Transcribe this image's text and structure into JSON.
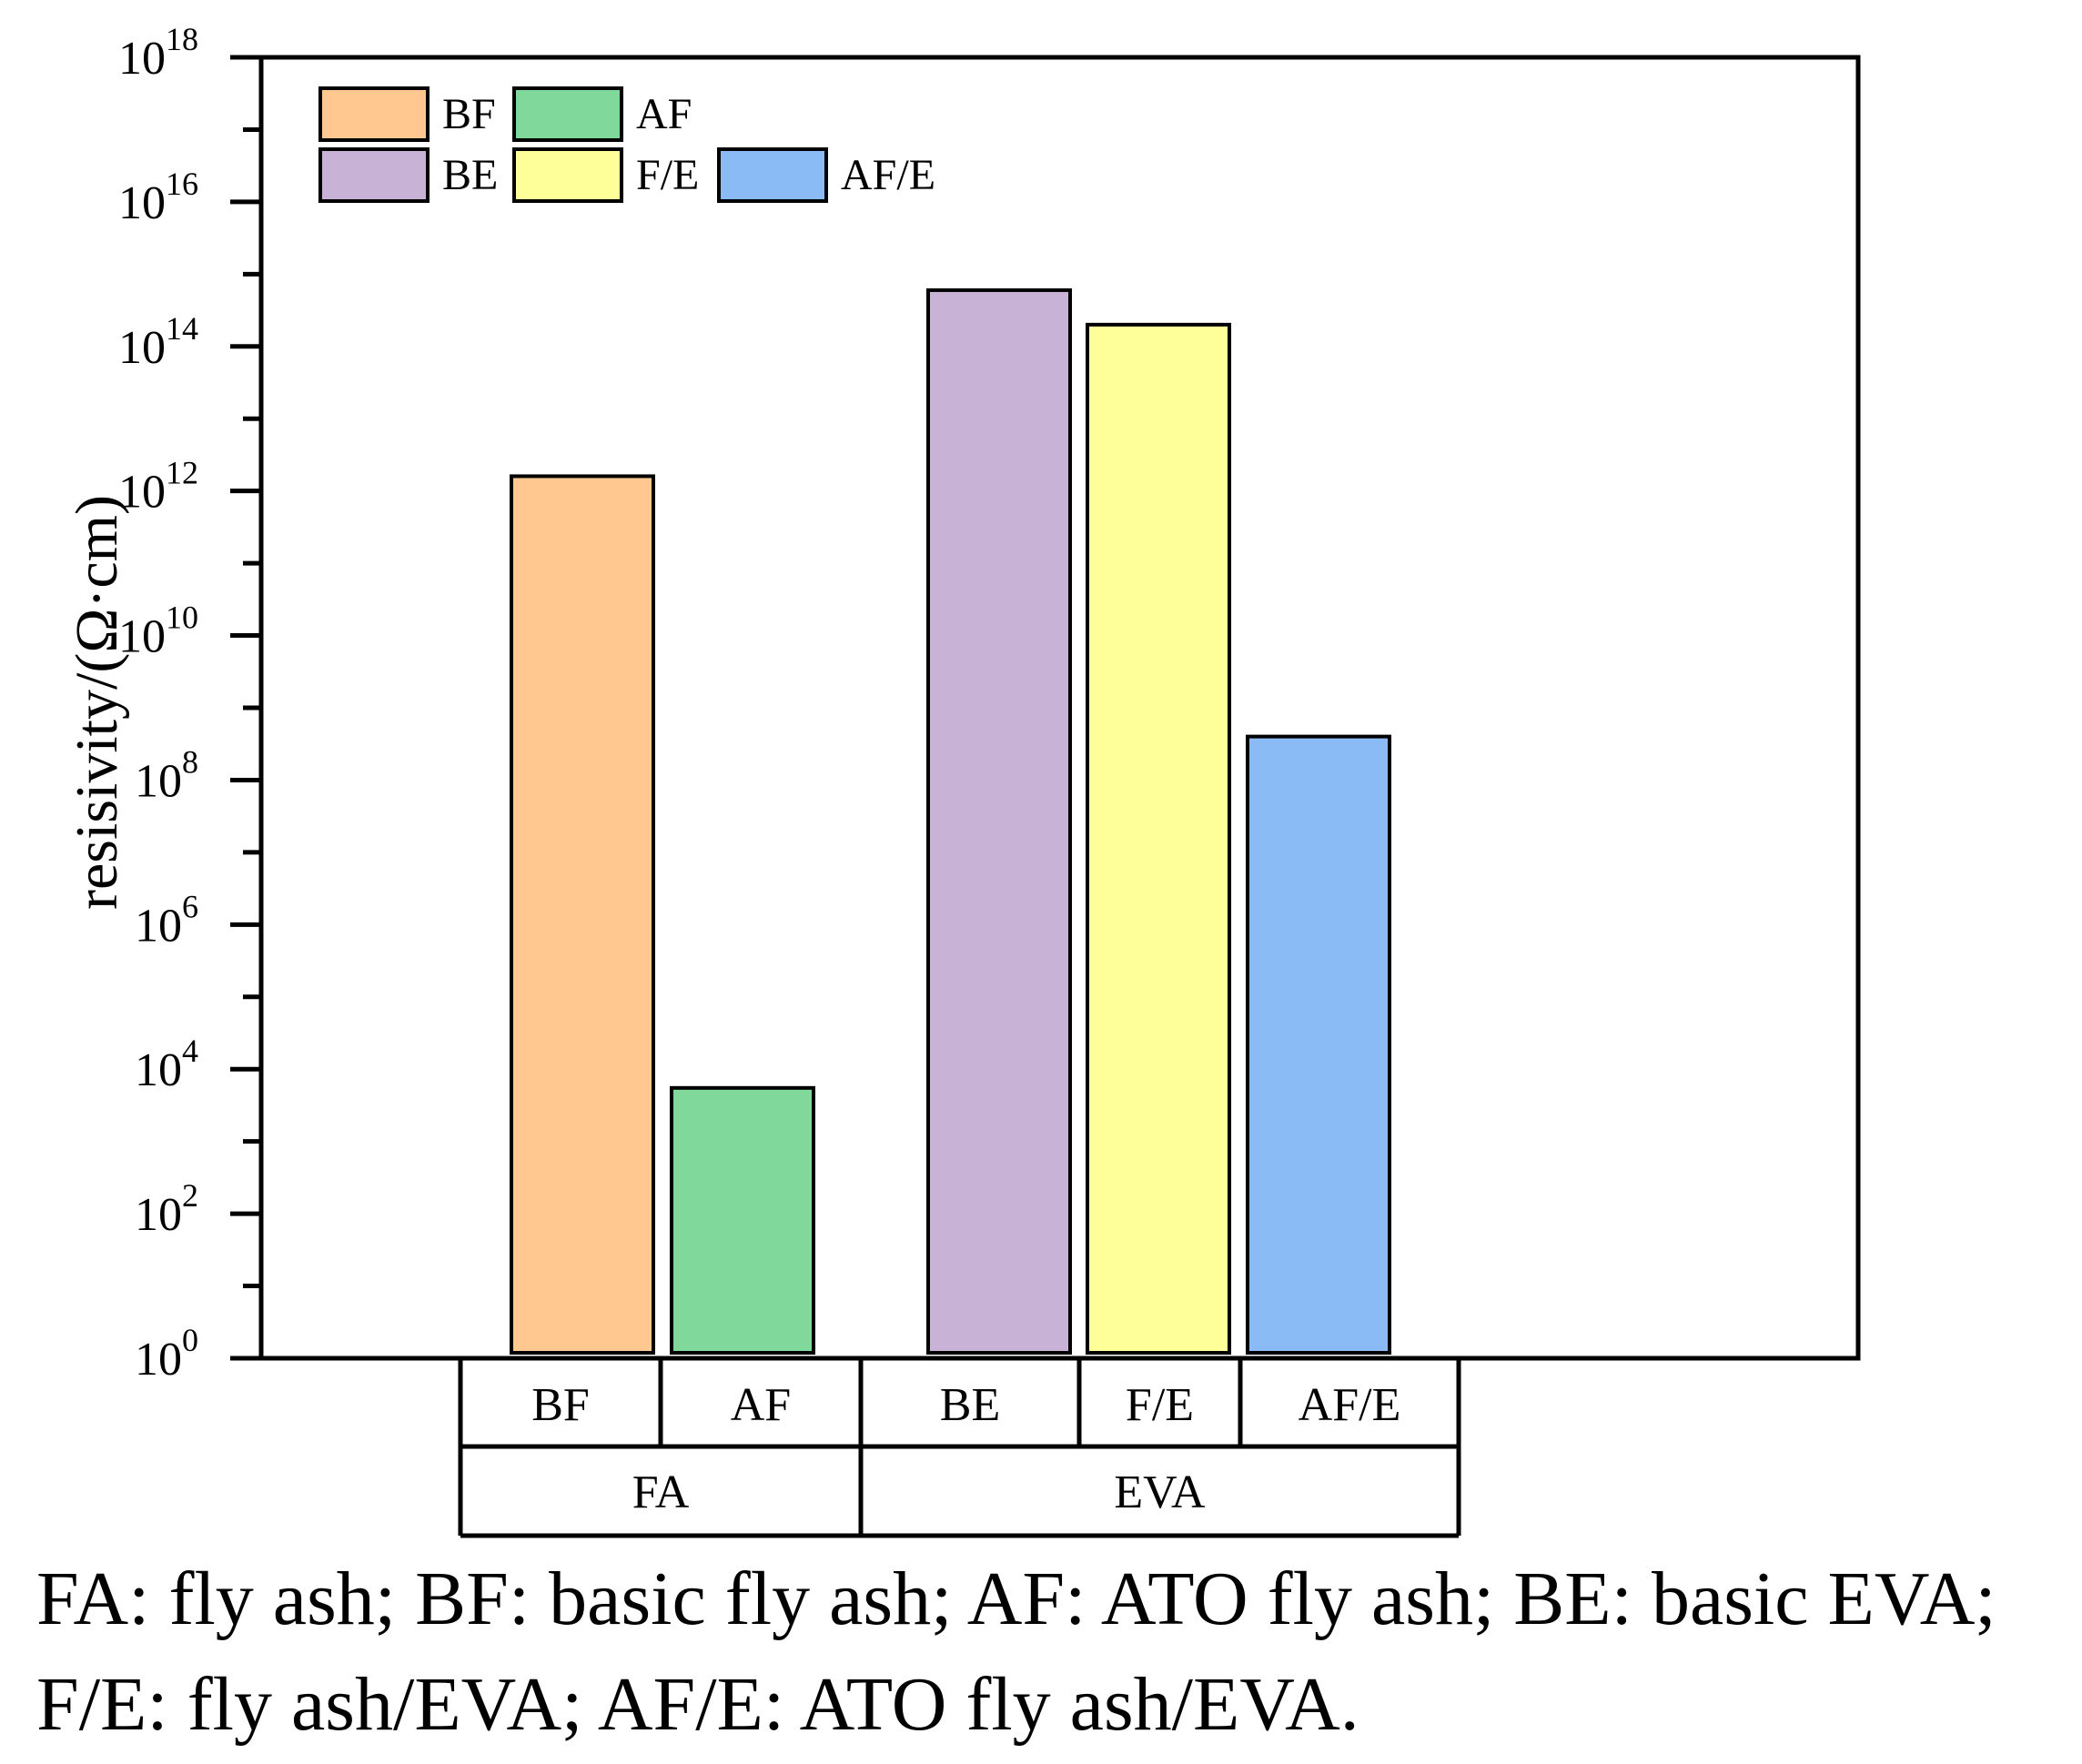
{
  "chart_data": {
    "type": "bar",
    "ylabel": "resisivity/(Ω·cm)",
    "yscale": "log",
    "ylim": [
      1,
      1e+18
    ],
    "ytick_exponents": [
      0,
      2,
      4,
      6,
      8,
      10,
      12,
      14,
      16,
      18
    ],
    "categories": [
      "BF",
      "AF",
      "BE",
      "F/E",
      "AF/E"
    ],
    "groups": [
      {
        "label": "FA",
        "categories": [
          "BF",
          "AF"
        ]
      },
      {
        "label": "EVA",
        "categories": [
          "BE",
          "F/E",
          "AF/E"
        ]
      }
    ],
    "values": [
      1600000000000.0,
      5500.0,
      600000000000000.0,
      200000000000000.0,
      400000000.0
    ],
    "colors": [
      "#FFC891",
      "#80D99A",
      "#C8B2D6",
      "#FFFF99",
      "#8BBBF4"
    ],
    "legend": {
      "placement": "top-left",
      "rows": [
        [
          {
            "label": "BF",
            "color": "#FFC891"
          },
          {
            "label": "AF",
            "color": "#80D99A"
          }
        ],
        [
          {
            "label": "BE",
            "color": "#C8B2D6"
          },
          {
            "label": "F/E",
            "color": "#FFFF99"
          },
          {
            "label": "AF/E",
            "color": "#8BBBF4"
          }
        ]
      ]
    },
    "grid": false
  },
  "caption": {
    "line1": "FA: fly ash; BF: basic fly ash; AF: ATO fly ash; BE: basic EVA;",
    "line2": "F/E: fly ash/EVA; AF/E: ATO fly ash/EVA."
  }
}
